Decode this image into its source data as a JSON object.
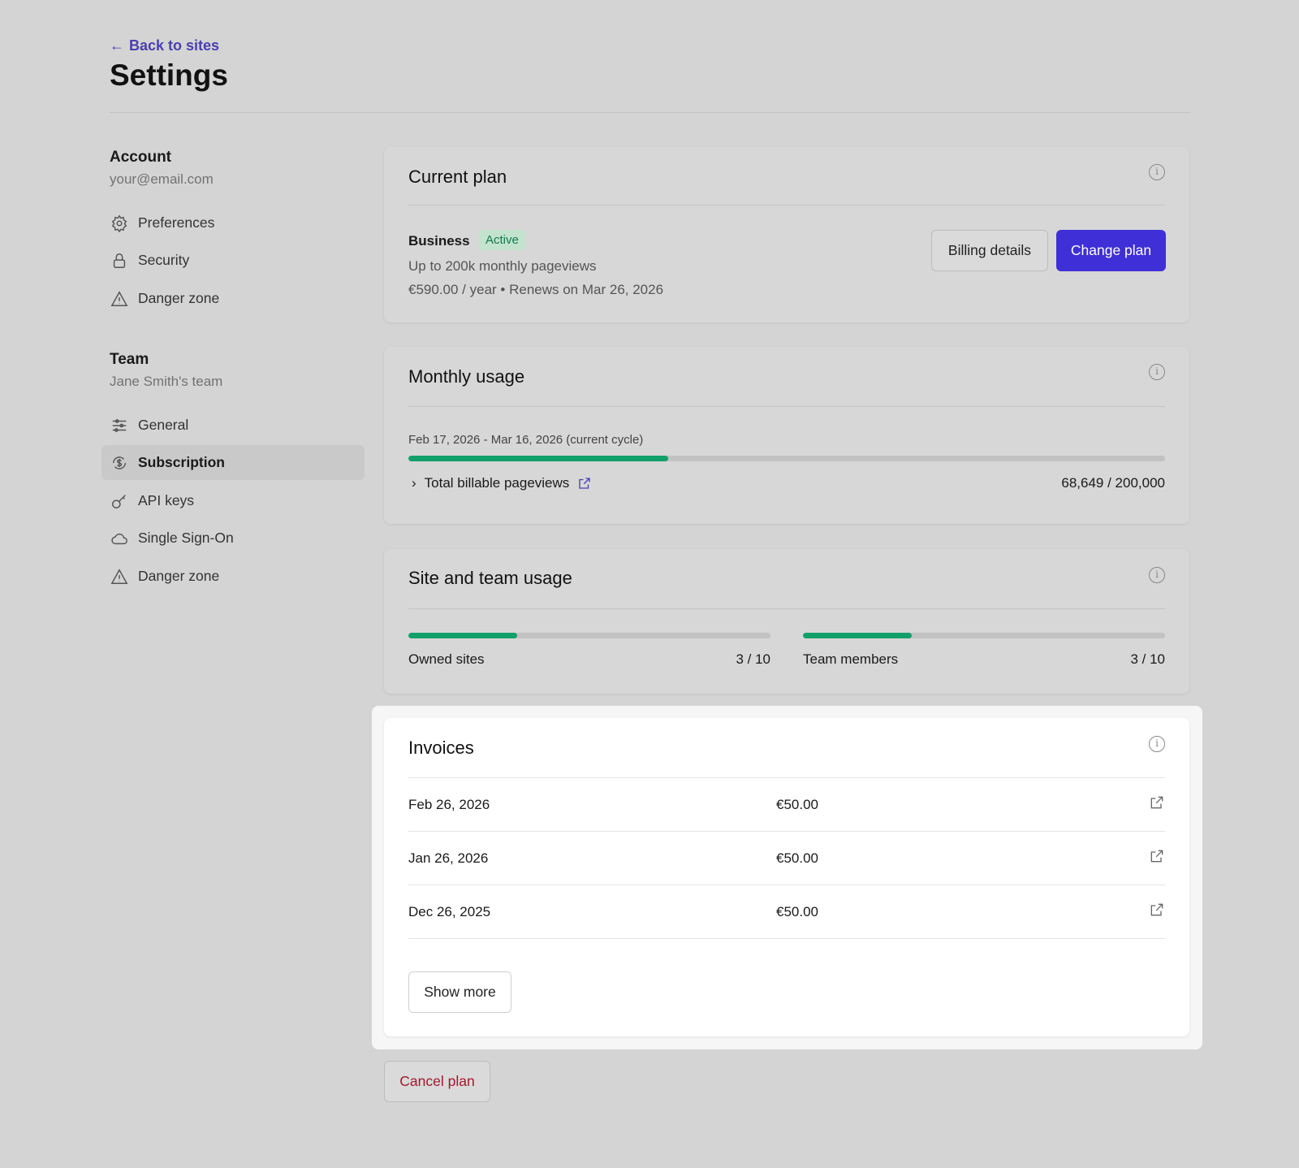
{
  "header": {
    "back_label": "Back to sites",
    "title": "Settings"
  },
  "sidebar": {
    "account": {
      "title": "Account",
      "email": "your@email.com",
      "items": [
        {
          "label": "Preferences",
          "icon": "gear-icon"
        },
        {
          "label": "Security",
          "icon": "lock-icon"
        },
        {
          "label": "Danger zone",
          "icon": "warning-icon"
        }
      ]
    },
    "team": {
      "title": "Team",
      "name": "Jane Smith's team",
      "items": [
        {
          "label": "General",
          "icon": "sliders-icon"
        },
        {
          "label": "Subscription",
          "icon": "dollar-cycle-icon",
          "active": true
        },
        {
          "label": "API keys",
          "icon": "key-icon"
        },
        {
          "label": "Single Sign-On",
          "icon": "cloud-icon"
        },
        {
          "label": "Danger zone",
          "icon": "warning-icon"
        }
      ]
    }
  },
  "current_plan": {
    "title": "Current plan",
    "plan": "Business",
    "status": "Active",
    "limit": "Up to 200k monthly pageviews",
    "price": "€590.00 / year • Renews on Mar 26, 2026",
    "billing_button": "Billing details",
    "change_button": "Change plan"
  },
  "monthly_usage": {
    "title": "Monthly usage",
    "cycle": "Feb 17, 2026 - Mar 16, 2026 (current cycle)",
    "label": "Total billable pageviews",
    "value": "68,649 / 200,000",
    "progress": 0.343
  },
  "site_team_usage": {
    "title": "Site and team usage",
    "sites": {
      "label": "Owned sites",
      "value": "3 / 10",
      "progress": 0.3
    },
    "members": {
      "label": "Team members",
      "value": "3 / 10",
      "progress": 0.3
    }
  },
  "invoices": {
    "title": "Invoices",
    "rows": [
      {
        "date": "Feb 26, 2026",
        "amount": "€50.00"
      },
      {
        "date": "Jan 26, 2026",
        "amount": "€50.00"
      },
      {
        "date": "Dec 26, 2025",
        "amount": "€50.00"
      }
    ],
    "show_more": "Show more"
  },
  "cancel_button": "Cancel plan",
  "colors": {
    "accent": "#3f2fd6",
    "link": "#4a3fb0",
    "progress": "#12a06a",
    "danger": "#a3182f",
    "active_badge_bg": "#c3e3cf"
  }
}
